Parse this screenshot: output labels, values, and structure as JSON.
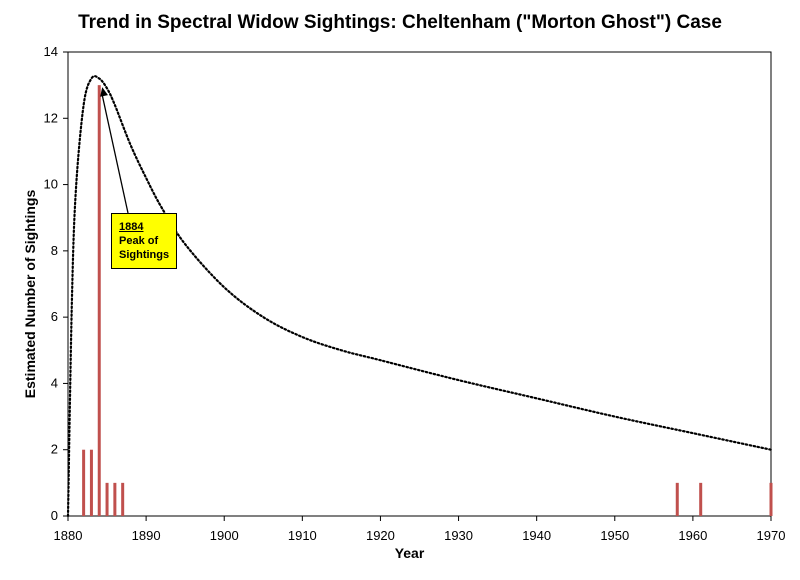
{
  "chart_data": {
    "type": "bar",
    "title": "Trend in Spectral Widow Sightings: Cheltenham (\"Morton Ghost\") Case",
    "xlabel": "Year",
    "ylabel": "Estimated Number of Sightings",
    "xlim": [
      1880,
      1970
    ],
    "ylim": [
      0,
      14
    ],
    "xticks": [
      1880,
      1890,
      1900,
      1910,
      1920,
      1930,
      1940,
      1950,
      1960,
      1970
    ],
    "yticks": [
      0,
      2,
      4,
      6,
      8,
      10,
      12,
      14
    ],
    "grid": false,
    "legend": "none",
    "bar_color": "#c0504d",
    "trend_color": "#000000",
    "series": [
      {
        "type": "bar",
        "x": [
          1882,
          1883,
          1884,
          1885,
          1886,
          1887,
          1958,
          1961,
          1970
        ],
        "values": [
          2,
          2,
          13,
          1,
          1,
          1,
          1,
          1,
          1
        ]
      },
      {
        "type": "line",
        "style": "dotted",
        "x": [
          1880,
          1880.5,
          1881,
          1882,
          1883,
          1884,
          1885,
          1886,
          1888,
          1890,
          1892,
          1895,
          1900,
          1905,
          1910,
          1915,
          1920,
          1930,
          1940,
          1950,
          1960,
          1970
        ],
        "values": [
          0,
          6.5,
          9.8,
          12.4,
          13.2,
          13.2,
          12.9,
          12.4,
          11.2,
          10.2,
          9.3,
          8.2,
          6.9,
          6.0,
          5.4,
          5.0,
          4.7,
          4.1,
          3.55,
          3.0,
          2.5,
          2.0
        ]
      }
    ],
    "annotations": [
      {
        "x": 1884,
        "y": 13,
        "year_label": "1884",
        "text": "Peak of Sightings",
        "box_color": "#ffff00"
      }
    ]
  }
}
